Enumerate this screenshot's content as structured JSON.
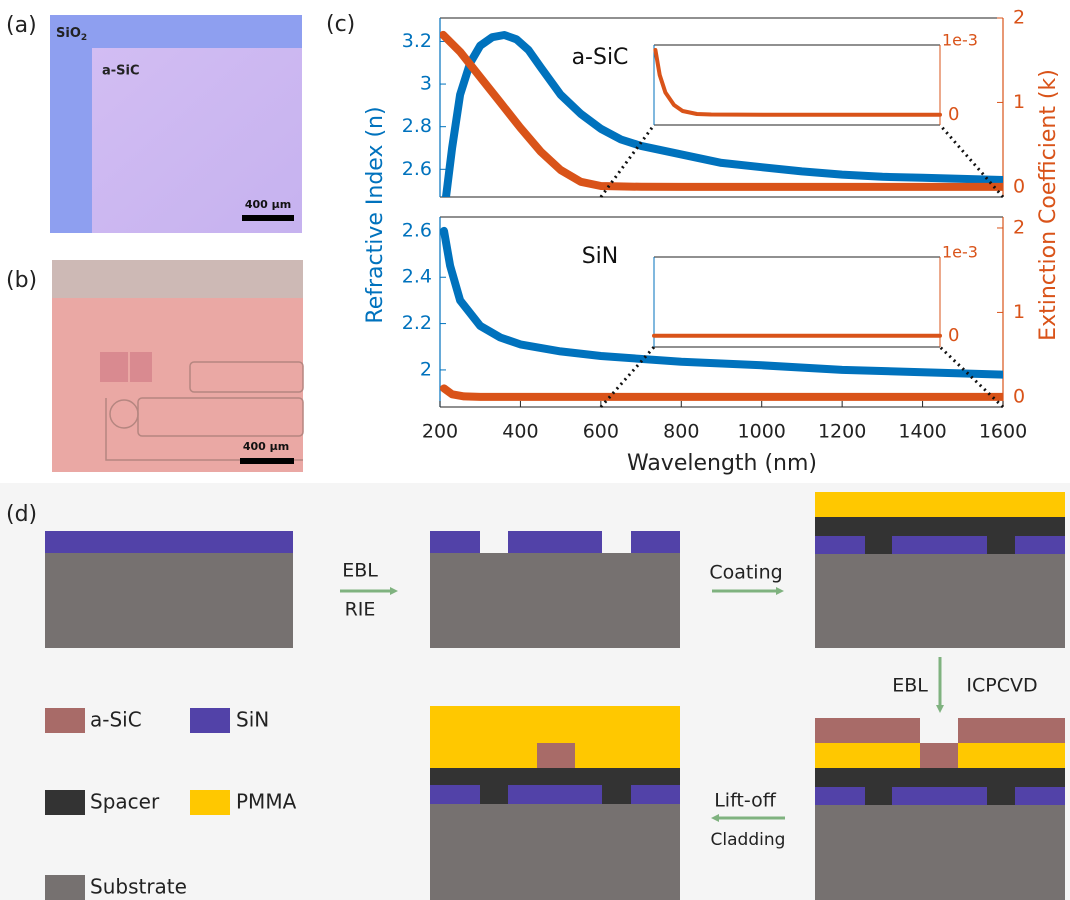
{
  "panel_a": {
    "label": "(a)",
    "substrate_label": "SiO",
    "substrate_subscript": "2",
    "film_label": "a-SiC",
    "scale_bar": "400 µm"
  },
  "panel_b": {
    "label": "(b)",
    "scale_bar": "400 µm"
  },
  "panel_c": {
    "label": "(c)",
    "xlabel": "Wavelength (nm)",
    "ylabel": "Refractive Index (n)",
    "y2label": "Extinction Coefficient (k)"
  },
  "chart_data": [
    {
      "type": "line",
      "annotation": "a-SiC",
      "xlim": [
        200,
        1600
      ],
      "ylim": [
        2.47,
        3.31
      ],
      "yticks": [
        2.6,
        2.8,
        3,
        3.2
      ],
      "y2lim": [
        -0.12,
        2
      ],
      "y2ticks": [
        0,
        1,
        2
      ],
      "series": [
        {
          "color": "#0072bd",
          "x": [
            215,
            230,
            250,
            275,
            300,
            330,
            360,
            390,
            420,
            450,
            500,
            550,
            600,
            650,
            700,
            800,
            900,
            1000,
            1100,
            1200,
            1300,
            1400,
            1500,
            1600
          ],
          "values": [
            2.47,
            2.7,
            2.95,
            3.1,
            3.18,
            3.22,
            3.23,
            3.21,
            3.16,
            3.08,
            2.95,
            2.86,
            2.79,
            2.74,
            2.71,
            2.67,
            2.63,
            2.61,
            2.59,
            2.575,
            2.565,
            2.56,
            2.555,
            2.55
          ]
        },
        {
          "color": "#d95319",
          "axis": "y2",
          "x": [
            208,
            250,
            300,
            350,
            400,
            450,
            500,
            550,
            600,
            700,
            800,
            1000,
            1200,
            1400,
            1600
          ],
          "values": [
            1.8,
            1.6,
            1.3,
            1.0,
            0.7,
            0.42,
            0.2,
            0.06,
            0.01,
            0.001,
            0,
            0,
            0,
            0,
            0
          ]
        }
      ],
      "inset": {
        "xlim": [
          600,
          1600
        ],
        "ylim": [
          -0.2,
          1.4
        ],
        "yticks": [
          0
        ],
        "offset_label": "1e-3",
        "color": "#d95319",
        "x": [
          605,
          620,
          640,
          670,
          700,
          750,
          800,
          1000,
          1200,
          1400,
          1600
        ],
        "values": [
          1.3,
          0.8,
          0.45,
          0.2,
          0.08,
          0.02,
          0.01,
          0.005,
          0.005,
          0.005,
          0.005
        ]
      }
    },
    {
      "type": "line",
      "annotation": "SiN",
      "xlim": [
        200,
        1600
      ],
      "xticks": [
        200,
        400,
        600,
        800,
        1000,
        1200,
        1400,
        1600
      ],
      "ylim": [
        1.84,
        2.66
      ],
      "yticks": [
        2,
        2.2,
        2.4,
        2.6
      ],
      "y2lim": [
        -0.12,
        2.13
      ],
      "y2ticks": [
        0,
        1,
        2
      ],
      "series": [
        {
          "color": "#0072bd",
          "x": [
            210,
            225,
            250,
            300,
            350,
            400,
            500,
            600,
            800,
            1000,
            1200,
            1400,
            1600
          ],
          "values": [
            2.6,
            2.45,
            2.3,
            2.19,
            2.14,
            2.11,
            2.08,
            2.06,
            2.035,
            2.02,
            2.0,
            1.99,
            1.98
          ]
        },
        {
          "color": "#d95319",
          "axis": "y2",
          "x": [
            210,
            230,
            260,
            300,
            600,
            1000,
            1600
          ],
          "values": [
            0.1,
            0.03,
            0.005,
            0,
            0,
            0,
            0
          ]
        }
      ],
      "inset": {
        "xlim": [
          600,
          1600
        ],
        "ylim": [
          -0.2,
          1.4
        ],
        "yticks": [
          0
        ],
        "offset_label": "1e-3",
        "color": "#d95319",
        "x": [
          600,
          800,
          1000,
          1200,
          1400,
          1600
        ],
        "values": [
          0,
          0,
          0,
          0,
          0,
          0
        ]
      }
    }
  ],
  "panel_d": {
    "label": "(d)",
    "steps": [
      "EBL",
      "RIE",
      "Coating",
      "EBL",
      "ICPCVD",
      "Lift-off",
      "Cladding"
    ],
    "legend": [
      "a-SiC",
      "SiN",
      "Spacer",
      "PMMA",
      "Substrate"
    ]
  }
}
